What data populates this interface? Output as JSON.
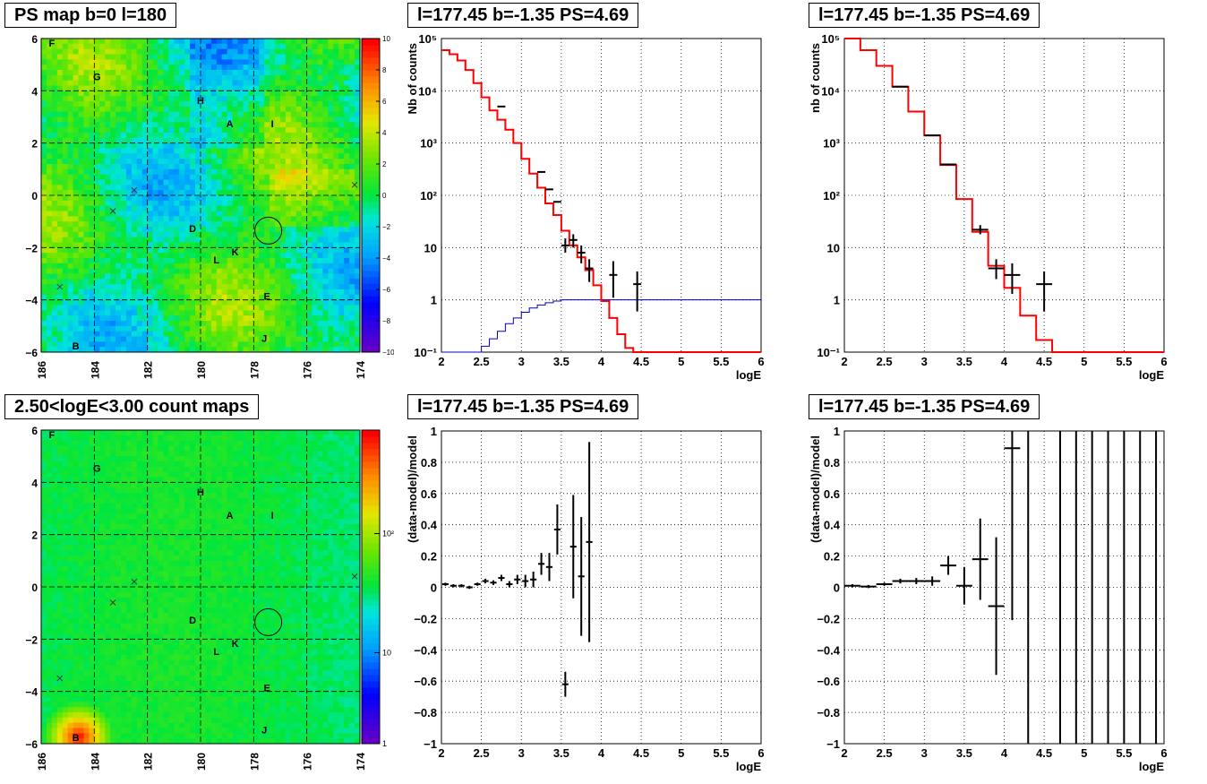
{
  "panels": {
    "map_top": {
      "title": "PS map b=0 l=180",
      "x_ticks": [
        186,
        184,
        182,
        180,
        178,
        176,
        174
      ],
      "y_ticks": [
        -6,
        -4,
        -2,
        0,
        2,
        4,
        6
      ],
      "colorbar_ticks": [
        -10,
        -8,
        -6,
        -4,
        -2,
        0,
        2,
        4,
        6,
        8,
        10
      ],
      "colorbar_scale": "linear"
    },
    "map_bottom": {
      "title": "2.50<logE<3.00 count maps",
      "x_ticks": [
        186,
        184,
        182,
        180,
        178,
        176,
        174
      ],
      "y_ticks": [
        -6,
        -4,
        -2,
        0,
        2,
        4,
        6
      ],
      "colorbar_ticks_labels": [
        "1",
        "10",
        "10²"
      ],
      "colorbar_scale": "log"
    },
    "spectrum_left": {
      "title": "l=177.45 b=-1.35 PS=4.69"
    },
    "spectrum_right": {
      "title": "l=177.45 b=-1.35 PS=4.69"
    },
    "residual_left": {
      "title": "l=177.45 b=-1.35 PS=4.69"
    },
    "residual_right": {
      "title": "l=177.45 b=-1.35 PS=4.69"
    }
  },
  "sources": [
    {
      "label": "F",
      "l": 185.6,
      "b": 5.7
    },
    {
      "label": "G",
      "l": 183.9,
      "b": 4.4
    },
    {
      "label": "H",
      "l": 180.0,
      "b": 3.5
    },
    {
      "label": "A",
      "l": 178.9,
      "b": 2.6
    },
    {
      "label": "I",
      "l": 177.3,
      "b": 2.6
    },
    {
      "label": "D",
      "l": 180.3,
      "b": -1.4
    },
    {
      "label": "K",
      "l": 178.7,
      "b": -2.3
    },
    {
      "label": "L",
      "l": 179.4,
      "b": -2.6
    },
    {
      "label": "E",
      "l": 177.5,
      "b": -4.0
    },
    {
      "label": "J",
      "l": 177.6,
      "b": -5.6
    },
    {
      "label": "B",
      "l": 184.7,
      "b": -5.9
    }
  ],
  "crosses": [
    {
      "l": 182.5,
      "b": 0.2
    },
    {
      "l": 183.3,
      "b": -0.6
    },
    {
      "l": 185.3,
      "b": -3.5
    },
    {
      "l": 174.2,
      "b": 0.4
    }
  ],
  "target": {
    "l": 177.45,
    "b": -1.35
  },
  "chart_data": [
    {
      "type": "line",
      "name": "spectrum_left",
      "title": "l=177.45 b=-1.35 PS=4.69",
      "xlabel": "logE",
      "ylabel": "Nb of counts",
      "xlim": [
        2,
        6
      ],
      "ylim": [
        0.1,
        100000
      ],
      "yscale": "log",
      "x_ticks": [
        2,
        2.5,
        3,
        3.5,
        4,
        4.5,
        5,
        5.5,
        6
      ],
      "y_tick_labels": [
        "10⁻¹",
        "1",
        "10",
        "10²",
        "10³",
        "10⁴",
        "10⁵"
      ],
      "grid": true,
      "data_points": [
        {
          "x": 2.75,
          "y": 5000,
          "xerr": 0.05
        },
        {
          "x": 3.25,
          "y": 280,
          "xerr": 0.05
        },
        {
          "x": 3.35,
          "y": 130,
          "xerr": 0.05
        },
        {
          "x": 3.45,
          "y": 75,
          "xerr": 0.05
        },
        {
          "x": 3.55,
          "y": 11,
          "xerr": 0.05,
          "ylo": 8,
          "yhi": 15
        },
        {
          "x": 3.65,
          "y": 14,
          "xerr": 0.05,
          "ylo": 10,
          "yhi": 18
        },
        {
          "x": 3.75,
          "y": 8,
          "xerr": 0.05,
          "ylo": 5,
          "yhi": 11
        },
        {
          "x": 3.85,
          "y": 4,
          "xerr": 0.05,
          "ylo": 2.2,
          "yhi": 6
        },
        {
          "x": 4.15,
          "y": 3,
          "xerr": 0.05,
          "ylo": 1.1,
          "yhi": 5.5
        },
        {
          "x": 4.45,
          "y": 2,
          "xerr": 0.05,
          "ylo": 0.6,
          "yhi": 3.5
        }
      ],
      "model": {
        "edges": [
          2.0,
          2.1,
          2.2,
          2.3,
          2.4,
          2.5,
          2.6,
          2.7,
          2.8,
          2.9,
          3.0,
          3.1,
          3.2,
          3.3,
          3.4,
          3.5,
          3.6,
          3.7,
          3.8,
          3.9,
          4.0,
          4.1,
          4.2,
          4.3,
          4.4,
          4.5,
          6.0
        ],
        "values": [
          60000,
          50000,
          38000,
          25000,
          14000,
          7500,
          4200,
          2800,
          1800,
          1000,
          500,
          260,
          140,
          70,
          42,
          21,
          11,
          6.5,
          3.7,
          1.9,
          0.95,
          0.45,
          0.22,
          0.12,
          0.1,
          0.1
        ]
      },
      "background": {
        "edges": [
          2.0,
          2.1,
          2.2,
          2.3,
          2.4,
          2.5,
          2.6,
          2.7,
          2.8,
          2.9,
          3.0,
          3.1,
          3.2,
          3.3,
          3.4,
          3.5,
          6.0
        ],
        "values": [
          0.1,
          0.1,
          0.1,
          0.1,
          0.1,
          0.13,
          0.18,
          0.25,
          0.35,
          0.45,
          0.58,
          0.7,
          0.8,
          0.88,
          0.95,
          1.0
        ]
      }
    },
    {
      "type": "line",
      "name": "spectrum_right",
      "title": "l=177.45 b=-1.35 PS=4.69",
      "xlabel": "logE",
      "ylabel": "nb of counts",
      "xlim": [
        2,
        6
      ],
      "ylim": [
        0.1,
        100000
      ],
      "yscale": "log",
      "x_ticks": [
        2,
        2.5,
        3,
        3.5,
        4,
        4.5,
        5,
        5.5,
        6
      ],
      "y_tick_labels": [
        "10⁻¹",
        "1",
        "10",
        "10²",
        "10³",
        "10⁴",
        "10⁵"
      ],
      "grid": true,
      "data_points": [
        {
          "x": 2.7,
          "y": 12000,
          "xerr": 0.1
        },
        {
          "x": 3.1,
          "y": 1400,
          "xerr": 0.1
        },
        {
          "x": 3.3,
          "y": 390,
          "xerr": 0.1
        },
        {
          "x": 3.7,
          "y": 22,
          "xerr": 0.1,
          "ylo": 18,
          "yhi": 27
        },
        {
          "x": 3.9,
          "y": 4,
          "xerr": 0.1,
          "ylo": 2.5,
          "yhi": 6
        },
        {
          "x": 4.1,
          "y": 3,
          "xerr": 0.1,
          "ylo": 1.3,
          "yhi": 5
        },
        {
          "x": 4.5,
          "y": 2,
          "xerr": 0.1,
          "ylo": 0.6,
          "yhi": 3.5
        }
      ],
      "model": {
        "edges": [
          2.0,
          2.2,
          2.4,
          2.6,
          2.8,
          3.0,
          3.2,
          3.4,
          3.6,
          3.8,
          4.0,
          4.2,
          4.4,
          4.6,
          6.0
        ],
        "values": [
          100000,
          60000,
          30000,
          12000,
          4000,
          1400,
          380,
          85,
          20,
          4.5,
          1.7,
          0.5,
          0.17,
          0.1
        ]
      }
    },
    {
      "type": "scatter",
      "name": "residual_left",
      "title": "l=177.45 b=-1.35 PS=4.69",
      "xlabel": "logE",
      "ylabel": "(data-model)/model",
      "xlim": [
        2,
        6
      ],
      "ylim": [
        -1,
        1
      ],
      "x_ticks": [
        2,
        2.5,
        3,
        3.5,
        4,
        4.5,
        5,
        5.5,
        6
      ],
      "y_ticks": [
        -1,
        -0.8,
        -0.6,
        -0.4,
        -0.2,
        0,
        0.2,
        0.4,
        0.6,
        0.8,
        1
      ],
      "grid": true,
      "points": [
        {
          "x": 2.05,
          "y": 0.02,
          "yerr": 0.01
        },
        {
          "x": 2.15,
          "y": 0.01,
          "yerr": 0.01
        },
        {
          "x": 2.25,
          "y": 0.01,
          "yerr": 0.01
        },
        {
          "x": 2.35,
          "y": 0.0,
          "yerr": 0.01
        },
        {
          "x": 2.45,
          "y": 0.02,
          "yerr": 0.01
        },
        {
          "x": 2.55,
          "y": 0.04,
          "yerr": 0.015
        },
        {
          "x": 2.65,
          "y": 0.03,
          "yerr": 0.015
        },
        {
          "x": 2.75,
          "y": 0.06,
          "yerr": 0.02
        },
        {
          "x": 2.85,
          "y": 0.02,
          "yerr": 0.02
        },
        {
          "x": 2.95,
          "y": 0.05,
          "yerr": 0.03
        },
        {
          "x": 3.05,
          "y": 0.04,
          "yerr": 0.04
        },
        {
          "x": 3.15,
          "y": 0.05,
          "yerr": 0.05
        },
        {
          "x": 3.25,
          "y": 0.15,
          "yerr": 0.07
        },
        {
          "x": 3.35,
          "y": 0.13,
          "yerr": 0.09
        },
        {
          "x": 3.45,
          "y": 0.37,
          "yerr": 0.16
        },
        {
          "x": 3.55,
          "y": -0.62,
          "yerr": 0.08
        },
        {
          "x": 3.65,
          "y": 0.26,
          "yerr": 0.33
        },
        {
          "x": 3.75,
          "y": 0.07,
          "yerr": 0.38
        },
        {
          "x": 3.85,
          "y": 0.29,
          "yerr": 0.64
        }
      ]
    },
    {
      "type": "scatter",
      "name": "residual_right",
      "title": "l=177.45 b=-1.35 PS=4.69",
      "xlabel": "logE",
      "ylabel": "(data-model)/model",
      "xlim": [
        2,
        6
      ],
      "ylim": [
        -1,
        1
      ],
      "x_ticks": [
        2,
        2.5,
        3,
        3.5,
        4,
        4.5,
        5,
        5.5,
        6
      ],
      "y_ticks": [
        -1,
        -0.8,
        -0.6,
        -0.4,
        -0.2,
        0,
        0.2,
        0.4,
        0.6,
        0.8,
        1
      ],
      "grid": true,
      "points": [
        {
          "x": 2.1,
          "y": 0.01,
          "yerr": 0.01,
          "xerr": 0.1
        },
        {
          "x": 2.3,
          "y": 0.005,
          "yerr": 0.01,
          "xerr": 0.1
        },
        {
          "x": 2.5,
          "y": 0.02,
          "yerr": 0.01,
          "xerr": 0.1
        },
        {
          "x": 2.7,
          "y": 0.04,
          "yerr": 0.015,
          "xerr": 0.1
        },
        {
          "x": 2.9,
          "y": 0.04,
          "yerr": 0.02,
          "xerr": 0.1
        },
        {
          "x": 3.1,
          "y": 0.04,
          "yerr": 0.03,
          "xerr": 0.1
        },
        {
          "x": 3.3,
          "y": 0.14,
          "yerr": 0.06,
          "xerr": 0.1
        },
        {
          "x": 3.5,
          "y": 0.01,
          "yerr": 0.12,
          "xerr": 0.1
        },
        {
          "x": 3.7,
          "y": 0.18,
          "yerr": 0.26,
          "xerr": 0.1
        },
        {
          "x": 3.9,
          "y": -0.12,
          "yerr": 0.44,
          "xerr": 0.1
        },
        {
          "x": 4.1,
          "y": 0.89,
          "yerr": 1.1,
          "xerr": 0.1
        },
        {
          "x": 4.3,
          "y": 0,
          "yerr": 5,
          "xerr": 0
        },
        {
          "x": 4.7,
          "y": 0,
          "yerr": 5,
          "xerr": 0
        },
        {
          "x": 4.9,
          "y": 0,
          "yerr": 5,
          "xerr": 0
        },
        {
          "x": 5.1,
          "y": 0,
          "yerr": 5,
          "xerr": 0
        },
        {
          "x": 5.3,
          "y": 0,
          "yerr": 5,
          "xerr": 0
        },
        {
          "x": 5.5,
          "y": 0,
          "yerr": 5,
          "xerr": 0
        },
        {
          "x": 5.7,
          "y": 0,
          "yerr": 5,
          "xerr": 0
        },
        {
          "x": 5.9,
          "y": 0,
          "yerr": 5,
          "xerr": 0
        }
      ]
    }
  ],
  "colors": {
    "model": "#ff0000",
    "background": "#0000cc",
    "data": "#000000",
    "grid": "#000000"
  }
}
